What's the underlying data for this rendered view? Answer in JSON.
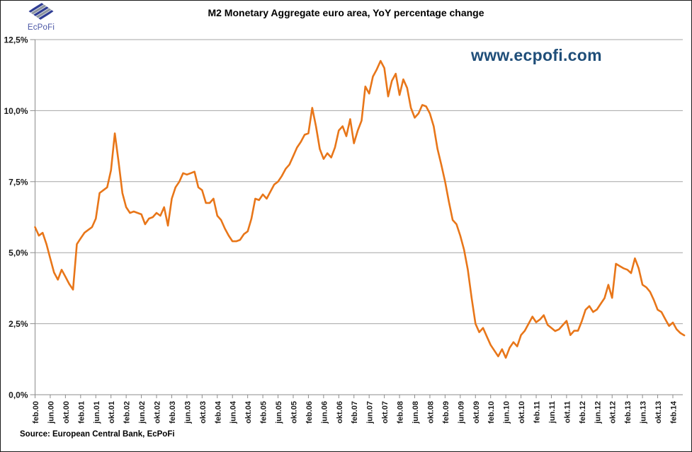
{
  "header": {
    "logo_text": "EcPoFi",
    "title": "M2 Monetary Aggregate euro area, YoY percentage change",
    "watermark": "www.ecpofi.com"
  },
  "footer": {
    "source": "Source: European Central Bank, EcPoFi"
  },
  "colors": {
    "line": "#E87619",
    "grid": "#A6A6A6",
    "axis": "#8C8C8C",
    "label_text": "#1a1a1a",
    "watermark": "#1F4E79",
    "logo_blue": "#2F3D94",
    "logo_gray": "#8F979F"
  },
  "chart_data": {
    "type": "line",
    "title": "M2 Monetary Aggregate euro area, YoY percentage change",
    "series_name": "M2 YoY % change",
    "frequency": "monthly",
    "start_month": "feb.00",
    "end_month": "may.14",
    "unit": "percent",
    "grid": true,
    "legend": false,
    "ylim": [
      0,
      12.5
    ],
    "y_ticks": [
      0,
      2.5,
      5,
      7.5,
      10,
      12.5
    ],
    "y_tick_labels": [
      "0,0%",
      "2,5%",
      "5,0%",
      "7,5%",
      "10,0%",
      "12,5%"
    ],
    "x_tick_every_n_months": 4,
    "x_tick_labels": [
      "feb.00",
      "jun.00",
      "okt.00",
      "feb.01",
      "jun.01",
      "okt.01",
      "feb.02",
      "jun.02",
      "okt.02",
      "feb.03",
      "jun.03",
      "okt.03",
      "feb.04",
      "jun.04",
      "okt.04",
      "feb.05",
      "jun.05",
      "okt.05",
      "feb.06",
      "jun.06",
      "okt.06",
      "feb.07",
      "jun.07",
      "okt.07",
      "feb.08",
      "jun.08",
      "okt.08",
      "feb.09",
      "jun.09",
      "okt.09",
      "feb.10",
      "jun.10",
      "okt.10",
      "feb.11",
      "jun.11",
      "okt.11",
      "feb.12",
      "jun.12",
      "okt.12",
      "feb.13",
      "jun.13",
      "okt.13",
      "feb.14"
    ],
    "values": [
      5.9,
      5.6,
      5.7,
      5.3,
      4.8,
      4.3,
      4.05,
      4.4,
      4.15,
      3.9,
      3.7,
      5.3,
      5.5,
      5.7,
      5.8,
      5.9,
      6.2,
      7.1,
      7.2,
      7.3,
      7.9,
      9.2,
      8.2,
      7.1,
      6.6,
      6.4,
      6.45,
      6.4,
      6.35,
      6.0,
      6.2,
      6.25,
      6.4,
      6.3,
      6.6,
      5.95,
      6.9,
      7.3,
      7.5,
      7.8,
      7.75,
      7.8,
      7.85,
      7.3,
      7.2,
      6.75,
      6.75,
      6.9,
      6.3,
      6.15,
      5.85,
      5.6,
      5.4,
      5.4,
      5.45,
      5.65,
      5.75,
      6.2,
      6.9,
      6.85,
      7.05,
      6.9,
      7.15,
      7.4,
      7.5,
      7.7,
      7.95,
      8.1,
      8.4,
      8.7,
      8.9,
      9.15,
      9.2,
      10.1,
      9.45,
      8.65,
      8.3,
      8.5,
      8.35,
      8.7,
      9.3,
      9.45,
      9.1,
      9.7,
      8.85,
      9.3,
      9.65,
      10.85,
      10.6,
      11.2,
      11.45,
      11.75,
      11.5,
      10.5,
      11.05,
      11.3,
      10.55,
      11.1,
      10.8,
      10.1,
      9.75,
      9.9,
      10.2,
      10.15,
      9.9,
      9.45,
      8.65,
      8.1,
      7.5,
      6.8,
      6.15,
      6.0,
      5.6,
      5.1,
      4.4,
      3.4,
      2.5,
      2.2,
      2.35,
      2.05,
      1.75,
      1.55,
      1.35,
      1.6,
      1.3,
      1.65,
      1.85,
      1.7,
      2.1,
      2.25,
      2.5,
      2.75,
      2.55,
      2.65,
      2.8,
      2.46,
      2.35,
      2.24,
      2.3,
      2.45,
      2.6,
      2.1,
      2.25,
      2.25,
      2.58,
      2.99,
      3.12,
      2.91,
      3.0,
      3.2,
      3.4,
      3.87,
      3.41,
      4.61,
      4.53,
      4.45,
      4.4,
      4.28,
      4.8,
      4.45,
      3.87,
      3.78,
      3.62,
      3.33,
      2.99,
      2.91,
      2.66,
      2.42,
      2.54,
      2.3,
      2.17,
      2.09
    ]
  }
}
